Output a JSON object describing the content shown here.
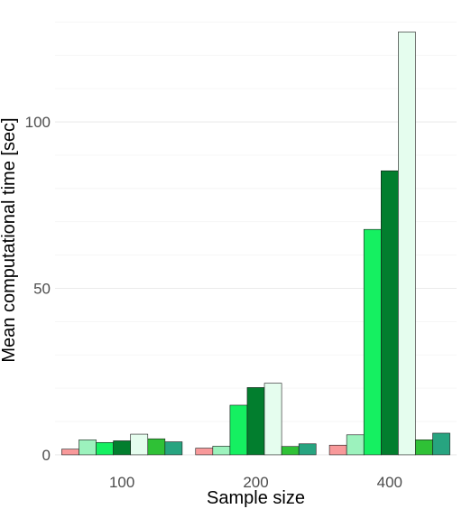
{
  "chart_data": {
    "type": "bar",
    "title": "",
    "xlabel": "Sample size",
    "ylabel": "Mean computational time [sec]",
    "categories": [
      "100",
      "200",
      "400"
    ],
    "yticks": [
      0,
      50,
      100
    ],
    "ylim": [
      -3,
      132
    ],
    "grid": true,
    "legend": "none",
    "series": [
      {
        "color": "#F8999A",
        "values": [
          1.7,
          2.0,
          2.9
        ]
      },
      {
        "color": "#9CF2BD",
        "values": [
          4.5,
          2.6,
          6.0
        ]
      },
      {
        "color": "#15F061",
        "values": [
          3.7,
          14.9,
          67.7
        ]
      },
      {
        "color": "#027E2E",
        "values": [
          4.2,
          20.2,
          85.3
        ]
      },
      {
        "color": "#E5FDEE",
        "values": [
          6.2,
          21.5,
          127.0
        ]
      },
      {
        "color": "#2FC136",
        "values": [
          4.8,
          2.5,
          4.5
        ]
      },
      {
        "color": "#27A480",
        "values": [
          3.9,
          3.3,
          6.5
        ]
      }
    ]
  }
}
